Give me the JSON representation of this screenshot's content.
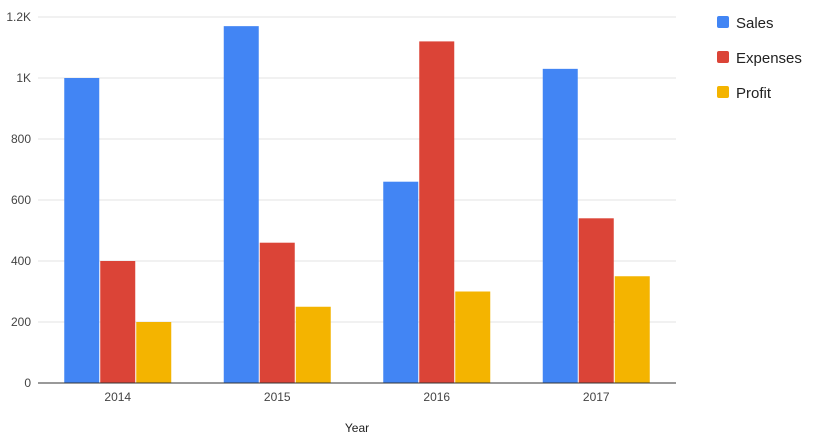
{
  "chart_data": {
    "type": "bar",
    "title": "",
    "xlabel": "Year",
    "ylabel": "",
    "categories": [
      "2014",
      "2015",
      "2016",
      "2017"
    ],
    "series": [
      {
        "name": "Sales",
        "color": "#4285F4",
        "values": [
          1000,
          1170,
          660,
          1030
        ]
      },
      {
        "name": "Expenses",
        "color": "#DB4437",
        "values": [
          400,
          460,
          1120,
          540
        ]
      },
      {
        "name": "Profit",
        "color": "#F4B400",
        "values": [
          200,
          250,
          300,
          350
        ]
      }
    ],
    "ylim": [
      0,
      1200
    ],
    "yticks": [
      {
        "value": 0,
        "label": "0"
      },
      {
        "value": 200,
        "label": "200"
      },
      {
        "value": 400,
        "label": "400"
      },
      {
        "value": 600,
        "label": "600"
      },
      {
        "value": 800,
        "label": "800"
      },
      {
        "value": 1000,
        "label": "1K"
      },
      {
        "value": 1200,
        "label": "1.2K"
      }
    ],
    "grid": true,
    "legend_position": "right"
  }
}
